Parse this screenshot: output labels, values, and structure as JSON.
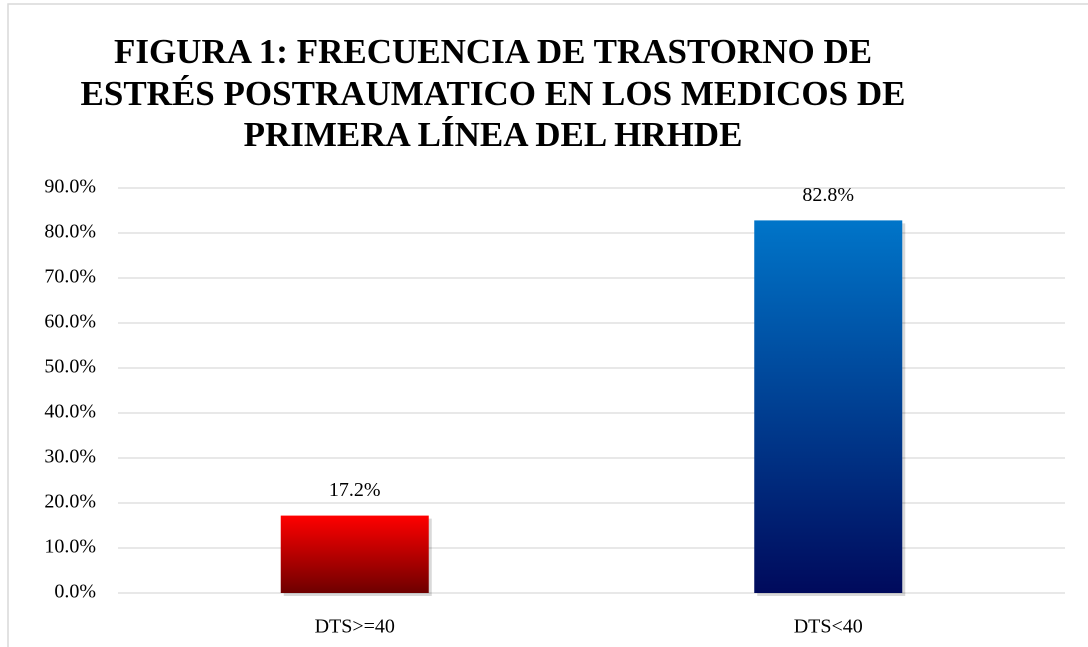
{
  "chart_data": {
    "type": "bar",
    "title": [
      "FIGURA 1: FRECUENCIA DE TRASTORNO DE",
      "ESTRÉS POSTRAUMATICO  EN LOS MEDICOS DE",
      "PRIMERA LÍNEA DEL HRHDE"
    ],
    "categories": [
      "DTS>=40",
      "DTS<40"
    ],
    "values": [
      17.2,
      82.8
    ],
    "value_labels": [
      "17.2%",
      "82.8%"
    ],
    "gradient_colors": [
      [
        "#ff0000",
        "#6e0000"
      ],
      [
        "#0075c9",
        "#000a5c"
      ]
    ],
    "ylim": [
      0,
      90
    ],
    "yticks": [
      {
        "value": 0,
        "label": "0.0%"
      },
      {
        "value": 10,
        "label": "10.0%"
      },
      {
        "value": 20,
        "label": "20.0%"
      },
      {
        "value": 30,
        "label": "30.0%"
      },
      {
        "value": 40,
        "label": "40.0%"
      },
      {
        "value": 50,
        "label": "50.0%"
      },
      {
        "value": 60,
        "label": "60.0%"
      },
      {
        "value": 70,
        "label": "70.0%"
      },
      {
        "value": 80,
        "label": "80.0%"
      },
      {
        "value": 90,
        "label": "90.0%"
      }
    ],
    "grid": true
  }
}
